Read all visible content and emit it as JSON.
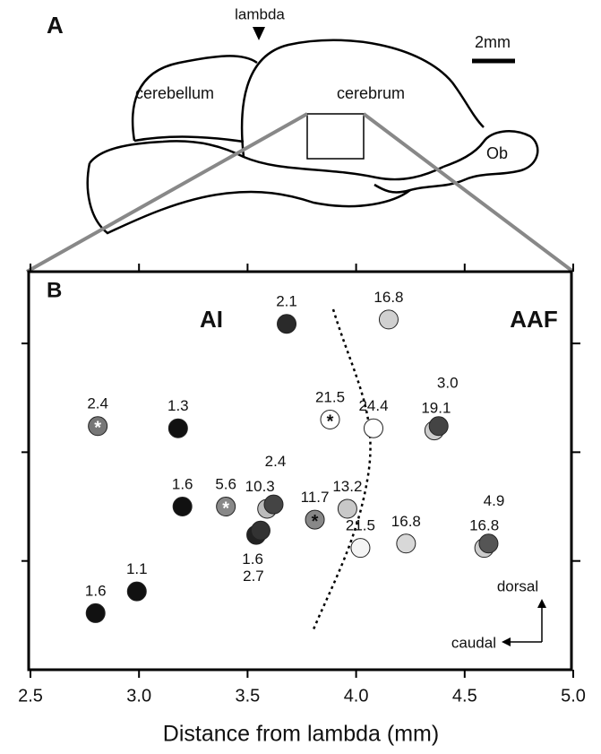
{
  "panel_a": {
    "label": "A",
    "lambda": "lambda",
    "cerebellum": "cerebellum",
    "cerebrum": "cerebrum",
    "ob": "Ob",
    "scale_bar": "2mm"
  },
  "chart_data": {
    "type": "scatter",
    "panel_label": "B",
    "region_left": "AI",
    "region_right": "AAF",
    "x_label": "Distance from lambda (mm)",
    "direction_up": "dorsal",
    "direction_left": "caudal",
    "xlim": [
      2.5,
      5
    ],
    "xticks": [
      2.5,
      {
        "value": 3,
        "label": "3.0"
      },
      3.5,
      {
        "value": 4,
        "label": "4.0"
      },
      4.5,
      {
        "value": 5,
        "label": "5.0"
      }
    ],
    "ylim": [
      0,
      1.83
    ],
    "yticks": [
      0.5,
      1,
      1.5
    ],
    "points": [
      {
        "x": 3.68,
        "y": 1.59,
        "value": 2.1,
        "color": "#2a2a2a"
      },
      {
        "x": 4.15,
        "y": 1.61,
        "value": 16.8,
        "color": "#d0d0d0"
      },
      {
        "x": 2.81,
        "y": 1.12,
        "value": 2.4,
        "color": "#777777",
        "asterisk": "#ffffff"
      },
      {
        "x": 3.18,
        "y": 1.11,
        "value": 1.3,
        "color": "#111111"
      },
      {
        "x": 3.88,
        "y": 1.15,
        "value": 21.5,
        "color": "#ffffff",
        "asterisk": "#111111"
      },
      {
        "x": 4.08,
        "y": 1.11,
        "value": 24.4,
        "color": "#ffffff"
      },
      {
        "x": 4.36,
        "y": 1.1,
        "value": 19.1,
        "color": "#cccccc"
      },
      {
        "x": 4.38,
        "y": 1.12,
        "value": 3.0,
        "value_label": "3.0",
        "color": "#444444"
      },
      {
        "x": 3.2,
        "y": 0.75,
        "value": 1.6,
        "color": "#111111"
      },
      {
        "x": 3.4,
        "y": 0.75,
        "value": 5.6,
        "color": "#888888",
        "asterisk": "#ffffff"
      },
      {
        "x": 3.59,
        "y": 0.74,
        "value": 10.3,
        "color": "#bbbbbb"
      },
      {
        "x": 3.62,
        "y": 0.76,
        "value": 2.4,
        "color": "#444444"
      },
      {
        "x": 3.54,
        "y": 0.62,
        "value": 1.6,
        "color": "#222222"
      },
      {
        "x": 3.56,
        "y": 0.64,
        "value": 2.7,
        "color": "#333333"
      },
      {
        "x": 3.81,
        "y": 0.69,
        "value": 11.7,
        "color": "#888888",
        "asterisk": "#111111"
      },
      {
        "x": 3.96,
        "y": 0.74,
        "value": 13.2,
        "color": "#c8c8c8"
      },
      {
        "x": 4.02,
        "y": 0.56,
        "value": 21.5,
        "color": "#f4f4f4"
      },
      {
        "x": 4.23,
        "y": 0.58,
        "value": 16.8,
        "color": "#d8d8d8"
      },
      {
        "x": 4.59,
        "y": 0.56,
        "value": 16.8,
        "color": "#cccccc"
      },
      {
        "x": 4.61,
        "y": 0.58,
        "value": 4.9,
        "color": "#555555"
      },
      {
        "x": 2.99,
        "y": 0.36,
        "value": 1.1,
        "color": "#111111"
      },
      {
        "x": 2.8,
        "y": 0.26,
        "value": 1.6,
        "color": "#111111"
      }
    ]
  }
}
